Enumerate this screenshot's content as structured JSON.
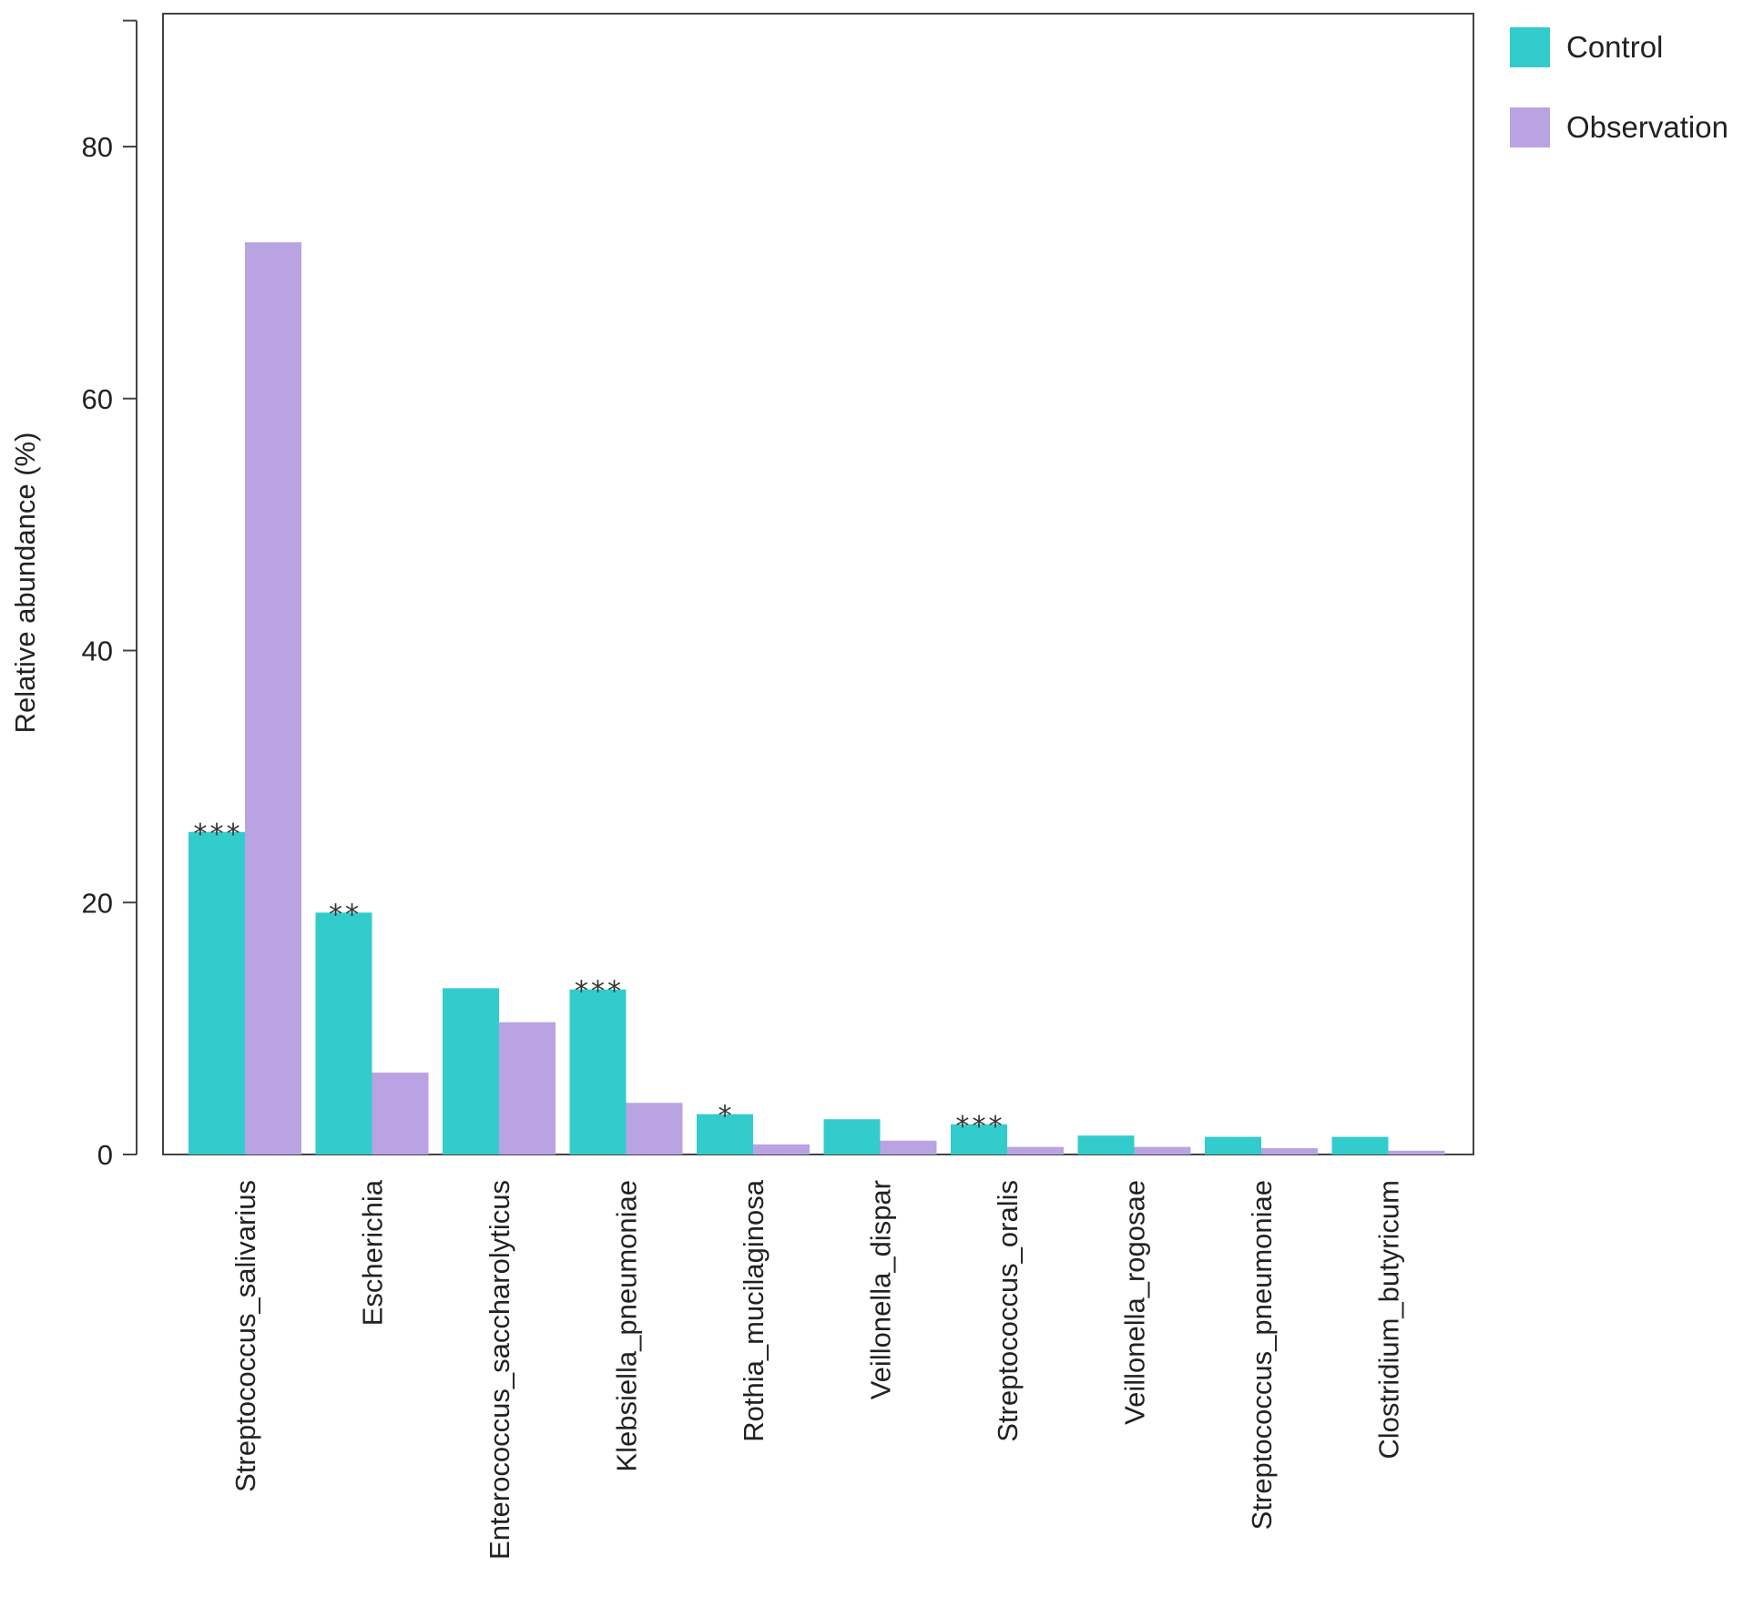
{
  "chart_data": {
    "type": "bar",
    "ylabel": "Relative abundance (%)",
    "ylim": [
      0,
      90
    ],
    "yticks": [
      0,
      20,
      40,
      60,
      80
    ],
    "grid": false,
    "legend_position": "top-right",
    "categories": [
      "Streptococcus_salivarius",
      "Escherichia",
      "Enterococcus_saccharolyticus",
      "Klebsiella_pneumoniae",
      "Rothia_mucilaginosa",
      "Veillonella_dispar",
      "Streptococcus_oralis",
      "Veillonella_rogosae",
      "Streptococcus_pneumoniae",
      "Clostridium_butyricum"
    ],
    "series": [
      {
        "name": "Control",
        "color": "#33cccc",
        "values": [
          25.6,
          19.2,
          13.2,
          13.1,
          3.2,
          2.8,
          2.4,
          1.5,
          1.4,
          1.4
        ]
      },
      {
        "name": "Observation",
        "color": "#b9a3e3",
        "values": [
          72.4,
          6.5,
          10.5,
          4.1,
          0.8,
          1.1,
          0.6,
          0.6,
          0.5,
          0.3
        ]
      }
    ],
    "annotations": [
      {
        "category_index": 0,
        "text": "***"
      },
      {
        "category_index": 1,
        "text": "**"
      },
      {
        "category_index": 3,
        "text": "***"
      },
      {
        "category_index": 4,
        "text": "*"
      },
      {
        "category_index": 6,
        "text": "***"
      }
    ]
  }
}
